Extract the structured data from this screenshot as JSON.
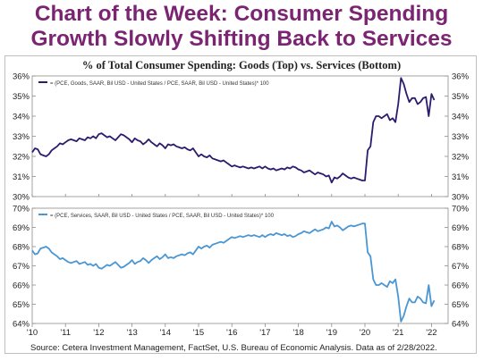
{
  "headline": {
    "line1": "Chart of the Week: Consumer Spending",
    "line2": "Growth Slowly Shifting Back to Services"
  },
  "source": "Source: Cetera Investment Management, FactSet, U.S. Bureau of Economic Analysis. Data as of 2/28/2022.",
  "colors": {
    "goods": "#2d1b6e",
    "services": "#4a96d3",
    "headline": "#7b2472"
  },
  "chart_data": [
    {
      "type": "line",
      "title": "% of Total Consumer Spending: Goods (Top) vs. Services (Bottom)",
      "legend": "= (PCE, Goods, SAAR, Bil USD - United States / PCE, SAAR, Bil USD - United States)* 100",
      "legend_position": "top-left",
      "grid": false,
      "ylim": [
        30,
        36
      ],
      "yticks": [
        "30%",
        "31%",
        "32%",
        "33%",
        "34%",
        "35%",
        "36%"
      ],
      "series": [
        {
          "x": [
            2010.0,
            2010.083,
            2010.167,
            2010.25,
            2010.333,
            2010.417,
            2010.5,
            2010.583,
            2010.667,
            2010.75,
            2010.833,
            2010.917,
            2011.0,
            2011.083,
            2011.167,
            2011.25,
            2011.333,
            2011.417,
            2011.5,
            2011.583,
            2011.667,
            2011.75,
            2011.833,
            2011.917,
            2012.0,
            2012.083,
            2012.167,
            2012.25,
            2012.333,
            2012.417,
            2012.5,
            2012.583,
            2012.667,
            2012.75,
            2012.833,
            2012.917,
            2013.0,
            2013.083,
            2013.167,
            2013.25,
            2013.333,
            2013.417,
            2013.5,
            2013.583,
            2013.667,
            2013.75,
            2013.833,
            2013.917,
            2014.0,
            2014.083,
            2014.167,
            2014.25,
            2014.333,
            2014.417,
            2014.5,
            2014.583,
            2014.667,
            2014.75,
            2014.833,
            2014.917,
            2015.0,
            2015.083,
            2015.167,
            2015.25,
            2015.333,
            2015.417,
            2015.5,
            2015.583,
            2015.667,
            2015.75,
            2015.833,
            2015.917,
            2016.0,
            2016.083,
            2016.167,
            2016.25,
            2016.333,
            2016.417,
            2016.5,
            2016.583,
            2016.667,
            2016.75,
            2016.833,
            2016.917,
            2017.0,
            2017.083,
            2017.167,
            2017.25,
            2017.333,
            2017.417,
            2017.5,
            2017.583,
            2017.667,
            2017.75,
            2017.833,
            2017.917,
            2018.0,
            2018.083,
            2018.167,
            2018.25,
            2018.333,
            2018.417,
            2018.5,
            2018.583,
            2018.667,
            2018.75,
            2018.833,
            2018.917,
            2019.0,
            2019.083,
            2019.167,
            2019.25,
            2019.333,
            2019.417,
            2019.5,
            2019.583,
            2019.667,
            2019.75,
            2019.833,
            2019.917,
            2020.0,
            2020.083,
            2020.167,
            2020.25,
            2020.333,
            2020.417,
            2020.5,
            2020.583,
            2020.667,
            2020.75,
            2020.833,
            2020.917,
            2021.0,
            2021.083,
            2021.167,
            2021.25,
            2021.333,
            2021.417,
            2021.5,
            2021.583,
            2021.667,
            2021.75,
            2021.833,
            2021.917,
            2022.0,
            2022.083
          ],
          "values": [
            32.2,
            32.4,
            32.35,
            32.1,
            32.05,
            32.0,
            32.1,
            32.3,
            32.4,
            32.5,
            32.65,
            32.6,
            32.7,
            32.8,
            32.85,
            32.8,
            32.75,
            32.9,
            32.85,
            32.8,
            32.95,
            32.9,
            33.0,
            32.9,
            33.1,
            33.15,
            33.05,
            32.95,
            33.0,
            32.9,
            32.8,
            32.95,
            33.1,
            33.05,
            32.95,
            32.85,
            32.7,
            32.9,
            32.8,
            32.75,
            32.6,
            32.7,
            32.85,
            32.7,
            32.6,
            32.5,
            32.65,
            32.55,
            32.4,
            32.6,
            32.55,
            32.6,
            32.5,
            32.45,
            32.4,
            32.45,
            32.35,
            32.3,
            32.4,
            32.2,
            32.0,
            32.1,
            32.0,
            31.95,
            32.05,
            31.9,
            31.85,
            31.8,
            31.75,
            31.8,
            31.7,
            31.6,
            31.5,
            31.55,
            31.5,
            31.45,
            31.5,
            31.45,
            31.4,
            31.45,
            31.4,
            31.45,
            31.5,
            31.4,
            31.5,
            31.4,
            31.35,
            31.4,
            31.3,
            31.35,
            31.4,
            31.35,
            31.45,
            31.4,
            31.5,
            31.45,
            31.35,
            31.3,
            31.2,
            31.25,
            31.3,
            31.2,
            31.1,
            31.2,
            31.15,
            31.1,
            31.0,
            31.05,
            30.7,
            30.95,
            30.9,
            31.0,
            31.15,
            31.05,
            30.95,
            30.9,
            30.95,
            30.9,
            30.85,
            30.8,
            30.8,
            32.3,
            32.5,
            33.7,
            34.0,
            34.0,
            33.9,
            34.0,
            34.1,
            33.8,
            33.9,
            33.7,
            34.6,
            35.9,
            35.6,
            35.1,
            34.7,
            34.9,
            34.9,
            34.6,
            34.7,
            34.9,
            34.95,
            34.0,
            35.1,
            34.8
          ]
        }
      ]
    },
    {
      "type": "line",
      "legend": "= (PCE, Services, SAAR, Bil USD - United States / PCE, SAAR, Bil USD - United States)* 100",
      "legend_position": "top-left",
      "grid": false,
      "ylim": [
        64,
        70
      ],
      "yticks": [
        "64%",
        "65%",
        "66%",
        "67%",
        "68%",
        "69%",
        "70%"
      ],
      "xlim": [
        2010,
        2022.5
      ],
      "xticks": [
        "'10",
        "'11",
        "'12",
        "'13",
        "'14",
        "'15",
        "'16",
        "'17",
        "'18",
        "'19",
        "'20",
        "'21",
        "'22"
      ],
      "series": [
        {
          "x": [
            2010.0,
            2010.083,
            2010.167,
            2010.25,
            2010.333,
            2010.417,
            2010.5,
            2010.583,
            2010.667,
            2010.75,
            2010.833,
            2010.917,
            2011.0,
            2011.083,
            2011.167,
            2011.25,
            2011.333,
            2011.417,
            2011.5,
            2011.583,
            2011.667,
            2011.75,
            2011.833,
            2011.917,
            2012.0,
            2012.083,
            2012.167,
            2012.25,
            2012.333,
            2012.417,
            2012.5,
            2012.583,
            2012.667,
            2012.75,
            2012.833,
            2012.917,
            2013.0,
            2013.083,
            2013.167,
            2013.25,
            2013.333,
            2013.417,
            2013.5,
            2013.583,
            2013.667,
            2013.75,
            2013.833,
            2013.917,
            2014.0,
            2014.083,
            2014.167,
            2014.25,
            2014.333,
            2014.417,
            2014.5,
            2014.583,
            2014.667,
            2014.75,
            2014.833,
            2014.917,
            2015.0,
            2015.083,
            2015.167,
            2015.25,
            2015.333,
            2015.417,
            2015.5,
            2015.583,
            2015.667,
            2015.75,
            2015.833,
            2015.917,
            2016.0,
            2016.083,
            2016.167,
            2016.25,
            2016.333,
            2016.417,
            2016.5,
            2016.583,
            2016.667,
            2016.75,
            2016.833,
            2016.917,
            2017.0,
            2017.083,
            2017.167,
            2017.25,
            2017.333,
            2017.417,
            2017.5,
            2017.583,
            2017.667,
            2017.75,
            2017.833,
            2017.917,
            2018.0,
            2018.083,
            2018.167,
            2018.25,
            2018.333,
            2018.417,
            2018.5,
            2018.583,
            2018.667,
            2018.75,
            2018.833,
            2018.917,
            2019.0,
            2019.083,
            2019.167,
            2019.25,
            2019.333,
            2019.417,
            2019.5,
            2019.583,
            2019.667,
            2019.75,
            2019.833,
            2019.917,
            2020.0,
            2020.083,
            2020.167,
            2020.25,
            2020.333,
            2020.417,
            2020.5,
            2020.583,
            2020.667,
            2020.75,
            2020.833,
            2020.917,
            2021.0,
            2021.083,
            2021.167,
            2021.25,
            2021.333,
            2021.417,
            2021.5,
            2021.583,
            2021.667,
            2021.75,
            2021.833,
            2021.917,
            2022.0,
            2022.083
          ],
          "values": [
            67.8,
            67.6,
            67.65,
            67.9,
            67.95,
            68.0,
            67.9,
            67.7,
            67.6,
            67.5,
            67.35,
            67.4,
            67.3,
            67.2,
            67.15,
            67.2,
            67.25,
            67.1,
            67.15,
            67.2,
            67.05,
            67.1,
            67.0,
            67.1,
            66.9,
            66.85,
            66.95,
            67.05,
            67.0,
            67.1,
            67.2,
            67.05,
            66.9,
            66.95,
            67.05,
            67.15,
            67.3,
            67.1,
            67.2,
            67.25,
            67.4,
            67.3,
            67.15,
            67.3,
            67.4,
            67.5,
            67.35,
            67.45,
            67.6,
            67.4,
            67.45,
            67.4,
            67.5,
            67.55,
            67.6,
            67.55,
            67.65,
            67.7,
            67.6,
            67.8,
            68.0,
            67.9,
            68.0,
            68.05,
            67.95,
            68.1,
            68.15,
            68.2,
            68.25,
            68.2,
            68.3,
            68.4,
            68.5,
            68.45,
            68.5,
            68.55,
            68.5,
            68.55,
            68.6,
            68.55,
            68.6,
            68.55,
            68.5,
            68.6,
            68.5,
            68.6,
            68.65,
            68.6,
            68.7,
            68.65,
            68.6,
            68.65,
            68.55,
            68.6,
            68.5,
            68.55,
            68.65,
            68.7,
            68.8,
            68.75,
            68.7,
            68.8,
            68.9,
            68.8,
            68.85,
            68.9,
            69.0,
            68.95,
            69.3,
            69.05,
            69.1,
            69.0,
            68.85,
            68.95,
            69.05,
            69.1,
            69.05,
            69.1,
            69.15,
            69.2,
            69.2,
            67.7,
            67.5,
            66.3,
            66.0,
            66.0,
            66.1,
            66.0,
            65.9,
            66.2,
            66.1,
            66.3,
            65.4,
            64.1,
            64.4,
            64.9,
            65.3,
            65.1,
            65.1,
            65.4,
            65.3,
            65.1,
            65.05,
            66.0,
            64.9,
            65.2
          ]
        }
      ]
    }
  ]
}
